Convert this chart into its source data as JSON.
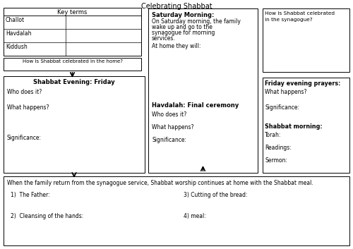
{
  "title": "Celebrating Shabbat",
  "bg_color": "#ffffff",
  "text_color": "#000000",
  "key_terms_title": "Key terms",
  "key_terms": [
    "Challot",
    "Havdalah",
    "Kiddush"
  ],
  "home_question": "How is Shabbat celebrated in the home?",
  "shabbat_evening_title": "Shabbat Evening: Friday",
  "shabbat_evening_items": [
    "Who does it?",
    "What happens?",
    "Significance:"
  ],
  "synagogue_question": "How is Shabbat celebrated in the synagogue?",
  "saturday_morning_title": "Saturday Morning:",
  "saturday_morning_lines": [
    "On Saturday morning, the family",
    "wake up and go to the",
    "synagogue for morning",
    "services."
  ],
  "saturday_at_home": "At home they will:",
  "havdalah_title": "Havdalah: Final ceremony",
  "havdalah_items": [
    "Who does it?",
    "What happens?",
    "Significance:"
  ],
  "friday_evening_title": "Friday evening prayers:",
  "friday_evening_items": [
    "What happens?",
    "Significance:"
  ],
  "shabbat_morning_title": "Shabbat morning:",
  "shabbat_morning_items": [
    "Torah:",
    "Readings:",
    "Sermon:"
  ],
  "bottom_text": "When the family return from the synagogue service, Shabbat worship continues at home with the Shabbat meal.",
  "bottom_items_left": [
    "1)  The Father:",
    "2)  Cleansing of the hands:"
  ],
  "bottom_items_right": [
    "3) Cutting of the bread:",
    "4) meal:"
  ]
}
